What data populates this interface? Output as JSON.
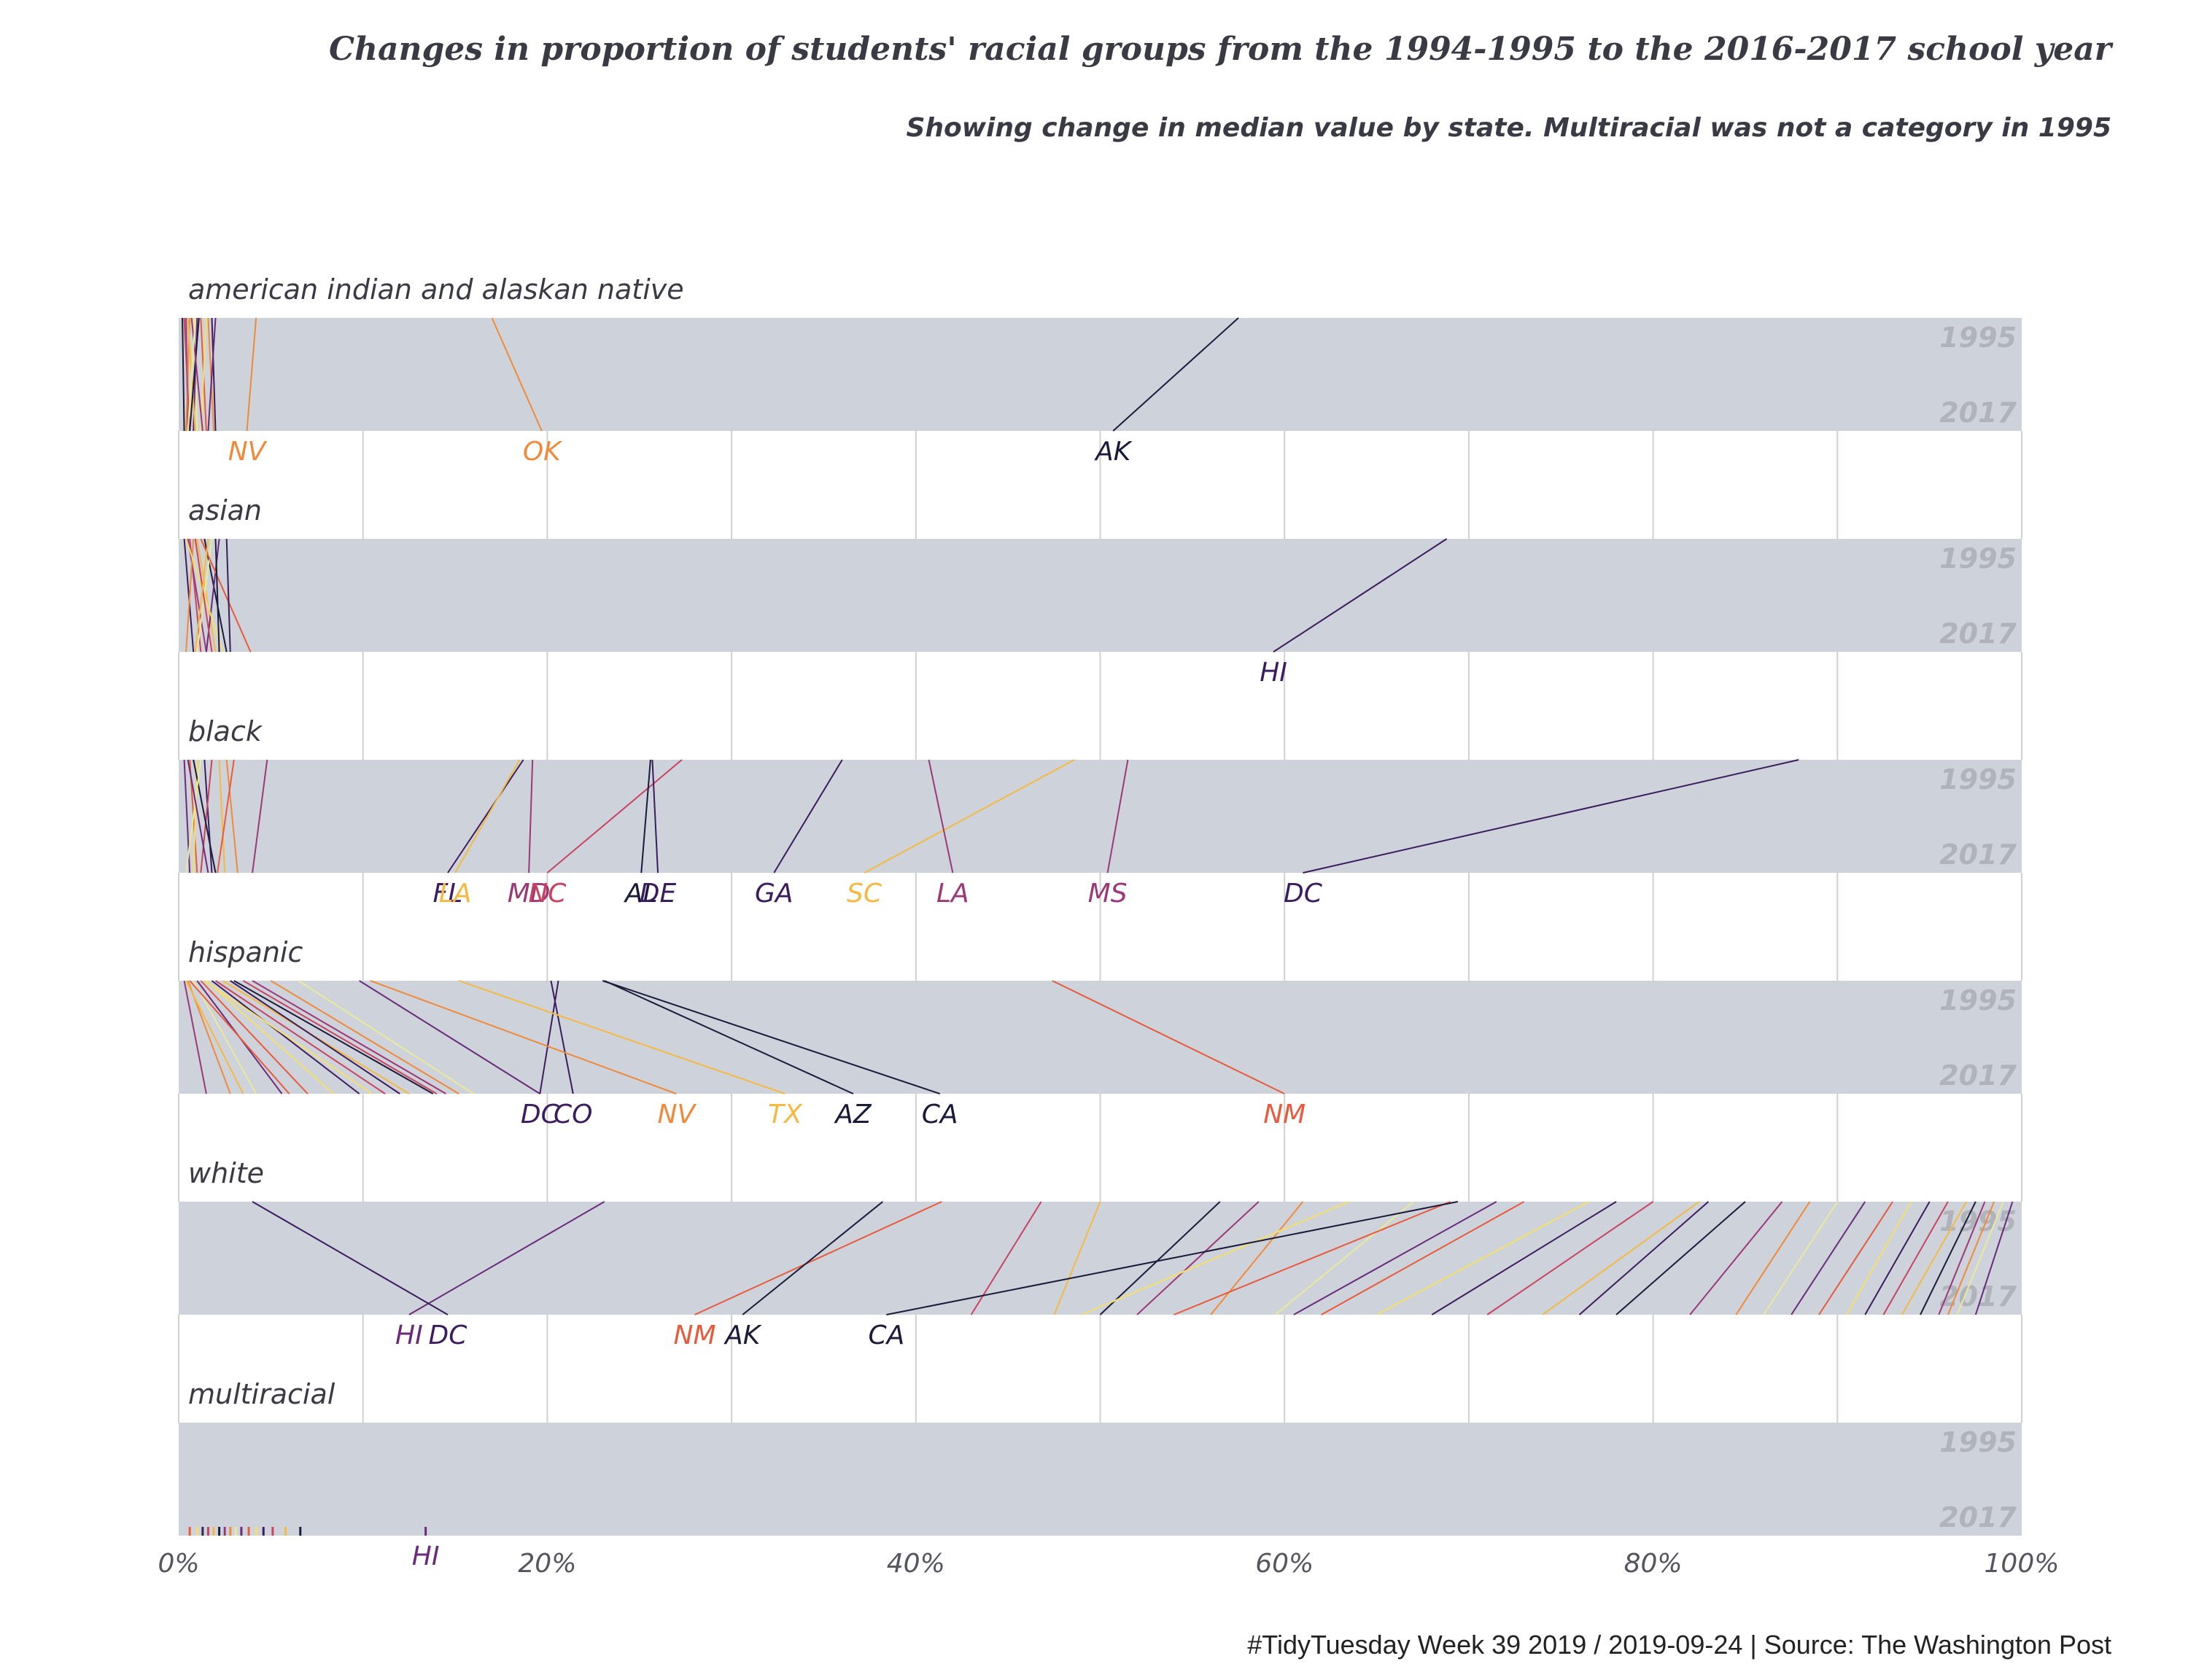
{
  "chart_data": {
    "type": "slope",
    "title": "Changes in proportion of students' racial groups from the 1994-1995 to the 2016-2017 school year",
    "subtitle": "Showing change in median value by state. Multiracial was not a category in 1995",
    "caption": "#TidyTuesday Week 39 2019 / 2019-09-24 | Source: The Washington Post",
    "x_ticks": [
      "0%",
      "20%",
      "40%",
      "60%",
      "80%",
      "100%"
    ],
    "xlim": [
      0,
      100
    ],
    "year_labels": [
      "1995",
      "2017"
    ],
    "palette": [
      "#1b1a3a",
      "#3b1c5e",
      "#6a2a7a",
      "#9b3878",
      "#c8435f",
      "#e85a3c",
      "#f08a3a",
      "#f5b942",
      "#f4df6a",
      "#e8ea9a"
    ],
    "facets": [
      {
        "name": "american indian and alaskan native",
        "labeled": [
          {
            "state": "NV",
            "from": 4.2,
            "to": 3.7,
            "color": "#f08a3a"
          },
          {
            "state": "OK",
            "from": 17.0,
            "to": 19.7,
            "color": "#f08a3a"
          },
          {
            "state": "AK",
            "from": 57.5,
            "to": 50.7,
            "color": "#1b1a3a"
          }
        ],
        "others": [
          {
            "from": 0.2,
            "to": 0.3
          },
          {
            "from": 0.4,
            "to": 0.5
          },
          {
            "from": 0.6,
            "to": 0.4
          },
          {
            "from": 0.8,
            "to": 1.0
          },
          {
            "from": 1.0,
            "to": 0.8
          },
          {
            "from": 1.2,
            "to": 1.5
          },
          {
            "from": 1.5,
            "to": 1.2
          },
          {
            "from": 1.8,
            "to": 2.0
          },
          {
            "from": 0.3,
            "to": 0.6
          },
          {
            "from": 0.5,
            "to": 0.9
          },
          {
            "from": 1.1,
            "to": 0.6
          },
          {
            "from": 0.7,
            "to": 1.3
          },
          {
            "from": 1.6,
            "to": 1.9
          },
          {
            "from": 0.9,
            "to": 0.5
          },
          {
            "from": 2.0,
            "to": 1.6
          }
        ]
      },
      {
        "name": "asian",
        "labeled": [
          {
            "state": "HI",
            "from": 68.8,
            "to": 59.4,
            "color": "#3b1c5e"
          }
        ],
        "others": [
          {
            "from": 0.3,
            "to": 0.8
          },
          {
            "from": 0.6,
            "to": 1.2
          },
          {
            "from": 1.0,
            "to": 2.0
          },
          {
            "from": 1.4,
            "to": 2.6
          },
          {
            "from": 0.5,
            "to": 1.5
          },
          {
            "from": 0.8,
            "to": 0.4
          },
          {
            "from": 1.8,
            "to": 1.0
          },
          {
            "from": 2.2,
            "to": 1.5
          },
          {
            "from": 1.2,
            "to": 3.9
          },
          {
            "from": 0.4,
            "to": 2.4
          },
          {
            "from": 2.6,
            "to": 2.8
          },
          {
            "from": 0.9,
            "to": 1.8
          },
          {
            "from": 1.6,
            "to": 0.9
          },
          {
            "from": 2.0,
            "to": 2.2
          }
        ]
      },
      {
        "name": "black",
        "labeled": [
          {
            "state": "FL",
            "from": 18.7,
            "to": 14.6,
            "color": "#3b1c5e"
          },
          {
            "state": "LA",
            "from": 18.5,
            "to": 15.0,
            "color": "#f5b942"
          },
          {
            "state": "MD",
            "from": 19.2,
            "to": 19.0,
            "color": "#9b3878"
          },
          {
            "state": "NC",
            "from": 27.3,
            "to": 20.0,
            "color": "#c8435f"
          },
          {
            "state": "AL",
            "from": 25.6,
            "to": 25.1,
            "color": "#1b1a3a"
          },
          {
            "state": "DE",
            "from": 25.7,
            "to": 26.0,
            "color": "#3b1c5e"
          },
          {
            "state": "GA",
            "from": 36.0,
            "to": 32.3,
            "color": "#3b1c5e"
          },
          {
            "state": "SC",
            "from": 48.6,
            "to": 37.2,
            "color": "#f5b942"
          },
          {
            "state": "LA",
            "from": 40.7,
            "to": 42.0,
            "color": "#9b3878"
          },
          {
            "state": "MS",
            "from": 51.5,
            "to": 50.4,
            "color": "#9b3878"
          },
          {
            "state": "DC",
            "from": 87.9,
            "to": 61.0,
            "color": "#3b1c5e"
          }
        ],
        "others": [
          {
            "from": 0.3,
            "to": 0.6
          },
          {
            "from": 0.6,
            "to": 1.0
          },
          {
            "from": 1.0,
            "to": 0.8
          },
          {
            "from": 1.4,
            "to": 1.8
          },
          {
            "from": 1.8,
            "to": 1.2
          },
          {
            "from": 2.2,
            "to": 2.5
          },
          {
            "from": 0.8,
            "to": 2.0
          },
          {
            "from": 4.8,
            "to": 4.0
          },
          {
            "from": 2.6,
            "to": 3.2
          },
          {
            "from": 1.2,
            "to": 0.4
          },
          {
            "from": 0.5,
            "to": 1.6
          },
          {
            "from": 3.0,
            "to": 2.1
          }
        ]
      },
      {
        "name": "hispanic",
        "labeled": [
          {
            "state": "DC",
            "from": 20.6,
            "to": 19.6,
            "color": "#3b1c5e"
          },
          {
            "state": "CO",
            "from": 20.2,
            "to": 21.4,
            "color": "#3b1c5e"
          },
          {
            "state": "NV",
            "from": 10.4,
            "to": 27.0,
            "color": "#f08a3a"
          },
          {
            "state": "TX",
            "from": 15.2,
            "to": 32.9,
            "color": "#f5b942"
          },
          {
            "state": "AZ",
            "from": 23.1,
            "to": 36.6,
            "color": "#1b1a3a"
          },
          {
            "state": "CA",
            "from": 23.0,
            "to": 41.3,
            "color": "#1b1a3a"
          },
          {
            "state": "NM",
            "from": 47.4,
            "to": 60.0,
            "color": "#e85a3c"
          }
        ],
        "others": [
          {
            "from": 0.3,
            "to": 1.5
          },
          {
            "from": 0.5,
            "to": 2.8
          },
          {
            "from": 0.8,
            "to": 4.2
          },
          {
            "from": 1.0,
            "to": 5.6
          },
          {
            "from": 1.2,
            "to": 7.0
          },
          {
            "from": 1.5,
            "to": 8.4
          },
          {
            "from": 1.8,
            "to": 9.8
          },
          {
            "from": 2.0,
            "to": 11.2
          },
          {
            "from": 2.4,
            "to": 12.5
          },
          {
            "from": 3.0,
            "to": 13.8
          },
          {
            "from": 4.0,
            "to": 14.5
          },
          {
            "from": 5.0,
            "to": 15.2
          },
          {
            "from": 6.5,
            "to": 16.0
          },
          {
            "from": 9.8,
            "to": 19.6
          },
          {
            "from": 0.6,
            "to": 6.0
          },
          {
            "from": 1.4,
            "to": 10.5
          },
          {
            "from": 2.8,
            "to": 12.0
          },
          {
            "from": 3.5,
            "to": 14.0
          },
          {
            "from": 0.4,
            "to": 3.5
          }
        ]
      },
      {
        "name": "white",
        "labeled": [
          {
            "state": "HI",
            "from": 23.1,
            "to": 12.5,
            "color": "#6a2a7a"
          },
          {
            "state": "DC",
            "from": 4.0,
            "to": 14.6,
            "color": "#3b1c5e"
          },
          {
            "state": "NM",
            "from": 41.4,
            "to": 28.0,
            "color": "#e85a3c"
          },
          {
            "state": "AK",
            "from": 38.2,
            "to": 30.6,
            "color": "#1b1a3a"
          },
          {
            "state": "CA",
            "from": 69.4,
            "to": 38.4,
            "color": "#1b1a3a"
          }
        ],
        "others": [
          {
            "from": 46.8,
            "to": 43.0
          },
          {
            "from": 50.0,
            "to": 47.5
          },
          {
            "from": 56.5,
            "to": 50.0
          },
          {
            "from": 58.6,
            "to": 52.0
          },
          {
            "from": 61.0,
            "to": 56.0
          },
          {
            "from": 67.0,
            "to": 59.5
          },
          {
            "from": 71.5,
            "to": 60.5
          },
          {
            "from": 73.0,
            "to": 62.0
          },
          {
            "from": 76.5,
            "to": 65.0
          },
          {
            "from": 78.0,
            "to": 68.0
          },
          {
            "from": 80.0,
            "to": 71.0
          },
          {
            "from": 82.5,
            "to": 74.0
          },
          {
            "from": 85.0,
            "to": 78.0
          },
          {
            "from": 87.0,
            "to": 82.0
          },
          {
            "from": 88.5,
            "to": 84.5
          },
          {
            "from": 90.0,
            "to": 86.0
          },
          {
            "from": 91.5,
            "to": 87.5
          },
          {
            "from": 93.0,
            "to": 89.0
          },
          {
            "from": 94.0,
            "to": 90.5
          },
          {
            "from": 95.0,
            "to": 91.5
          },
          {
            "from": 96.0,
            "to": 92.5
          },
          {
            "from": 97.0,
            "to": 93.5
          },
          {
            "from": 97.5,
            "to": 94.5
          },
          {
            "from": 98.0,
            "to": 95.5
          },
          {
            "from": 98.5,
            "to": 96.0
          },
          {
            "from": 99.0,
            "to": 96.5
          },
          {
            "from": 99.5,
            "to": 97.5
          },
          {
            "from": 69.0,
            "to": 54.0
          },
          {
            "from": 63.5,
            "to": 49.0
          },
          {
            "from": 83.0,
            "to": 76.0
          }
        ]
      },
      {
        "name": "multiracial",
        "labeled": [
          {
            "state": "HI",
            "from": null,
            "to": 13.4,
            "color": "#6a2a7a"
          }
        ],
        "others": [
          {
            "from": null,
            "to": 0.6
          },
          {
            "from": null,
            "to": 1.0
          },
          {
            "from": null,
            "to": 1.3
          },
          {
            "from": null,
            "to": 1.6
          },
          {
            "from": null,
            "to": 1.9
          },
          {
            "from": null,
            "to": 2.2
          },
          {
            "from": null,
            "to": 2.5
          },
          {
            "from": null,
            "to": 2.8
          },
          {
            "from": null,
            "to": 3.1
          },
          {
            "from": null,
            "to": 3.4
          },
          {
            "from": null,
            "to": 3.8
          },
          {
            "from": null,
            "to": 4.2
          },
          {
            "from": null,
            "to": 4.6
          },
          {
            "from": null,
            "to": 5.1
          },
          {
            "from": null,
            "to": 5.8
          },
          {
            "from": null,
            "to": 6.6
          }
        ]
      }
    ]
  }
}
